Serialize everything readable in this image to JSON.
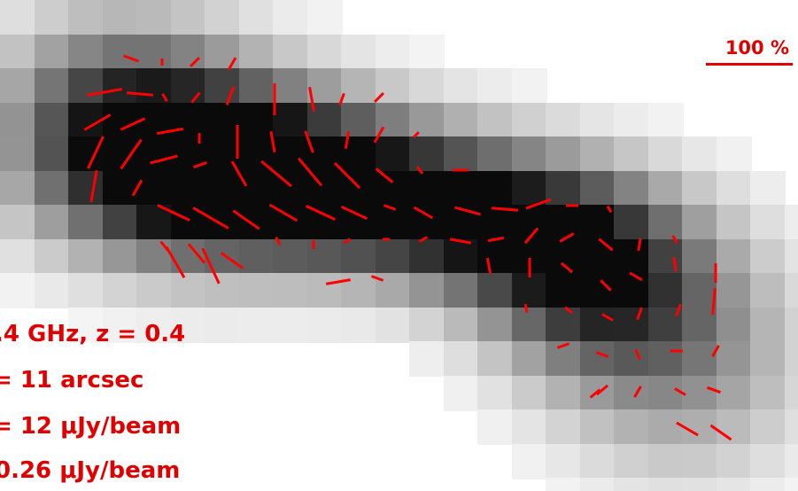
{
  "image": {
    "description_kind": "simulated radio polarization map",
    "colormap": "grayscale intensity (darker = brighter source)",
    "vector_color": "#ff0000",
    "text_color": "#e00000"
  },
  "legend": {
    "scale_label": "100 %"
  },
  "annotations": {
    "line1": ".4 GHz,  z = 0.4",
    "line2": "= 11 arcsec",
    "line3": "= 12 μJy/beam",
    "line4": "0.26 μJy/beam"
  }
}
